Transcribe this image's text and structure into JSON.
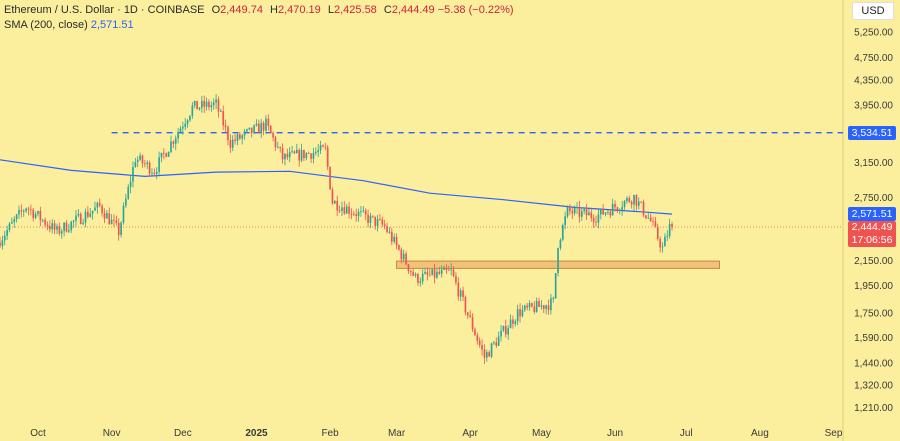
{
  "header": {
    "symbol": "Ethereum / U.S. Dollar · 1D · COINBASE",
    "o_label": "O",
    "o_value": "2,449.74",
    "h_label": "H",
    "h_value": "2,470.19",
    "l_label": "L",
    "l_value": "2,425.58",
    "c_label": "C",
    "c_value": "2,444.49",
    "change": "−5.38 (−0.22%)",
    "sma_label": "SMA (200, close)",
    "sma_value": "2,571.51"
  },
  "currency": "USD",
  "badges": {
    "level": "3,534.51",
    "sma": "2,571.51",
    "price": "2,444.49",
    "countdown": "17:06:56"
  },
  "colors": {
    "background": "#FBEE9C",
    "up": "#26a69a",
    "down": "#ef5350",
    "sma": "#2962ff",
    "level": "#2962ff",
    "zone_fill": "#F2C27A",
    "zone_border": "#C48A3A"
  },
  "chart_data": {
    "type": "candlestick",
    "y_scale": "log",
    "y_range": [
      1150,
      5800
    ],
    "y_ticks": [
      "5,250.00",
      "4,750.00",
      "4,350.00",
      "3,950.00",
      "3,534.51",
      "3,150.00",
      "2,750.00",
      "2,571.51",
      "2,444.49",
      "2,150.00",
      "1,950.00",
      "1,750.00",
      "1,590.00",
      "1,440.00",
      "1,320.00",
      "1,210.00"
    ],
    "x_range": [
      "2024-09-15",
      "2025-09-05"
    ],
    "x_ticks": [
      {
        "label": "Oct",
        "date": "2024-10-01"
      },
      {
        "label": "Nov",
        "date": "2024-11-01"
      },
      {
        "label": "Dec",
        "date": "2024-12-01"
      },
      {
        "label": "2025",
        "date": "2025-01-01"
      },
      {
        "label": "Feb",
        "date": "2025-02-01"
      },
      {
        "label": "Mar",
        "date": "2025-03-01"
      },
      {
        "label": "Apr",
        "date": "2025-04-01"
      },
      {
        "label": "May",
        "date": "2025-05-01"
      },
      {
        "label": "Jun",
        "date": "2025-06-01"
      },
      {
        "label": "Jul",
        "date": "2025-07-01"
      },
      {
        "label": "Aug",
        "date": "2025-08-01"
      },
      {
        "label": "Sep",
        "date": "2025-09-01"
      }
    ],
    "horizontal_line": 3534.51,
    "support_zone": {
      "low": 2080,
      "high": 2140,
      "from": "2025-03-01",
      "to": "2025-07-15"
    },
    "sma_200": [
      {
        "date": "2024-09-15",
        "value": 3180
      },
      {
        "date": "2024-10-15",
        "value": 3050
      },
      {
        "date": "2024-11-15",
        "value": 2980
      },
      {
        "date": "2024-12-15",
        "value": 3030
      },
      {
        "date": "2025-01-15",
        "value": 3040
      },
      {
        "date": "2025-02-15",
        "value": 2930
      },
      {
        "date": "2025-03-15",
        "value": 2790
      },
      {
        "date": "2025-04-15",
        "value": 2720
      },
      {
        "date": "2025-05-15",
        "value": 2640
      },
      {
        "date": "2025-06-15",
        "value": 2590
      },
      {
        "date": "2025-06-25",
        "value": 2571.51
      }
    ],
    "price_path": [
      {
        "date": "2024-09-15",
        "value": 2300
      },
      {
        "date": "2024-09-27",
        "value": 2650
      },
      {
        "date": "2024-10-10",
        "value": 2400
      },
      {
        "date": "2024-10-28",
        "value": 2650
      },
      {
        "date": "2024-11-05",
        "value": 2400
      },
      {
        "date": "2024-11-12",
        "value": 3200
      },
      {
        "date": "2024-11-20",
        "value": 3050
      },
      {
        "date": "2024-12-06",
        "value": 3900
      },
      {
        "date": "2024-12-16",
        "value": 3950
      },
      {
        "date": "2024-12-22",
        "value": 3400
      },
      {
        "date": "2025-01-06",
        "value": 3650
      },
      {
        "date": "2025-01-13",
        "value": 3200
      },
      {
        "date": "2025-01-31",
        "value": 3300
      },
      {
        "date": "2025-02-03",
        "value": 2700
      },
      {
        "date": "2025-02-25",
        "value": 2450
      },
      {
        "date": "2025-03-10",
        "value": 2000
      },
      {
        "date": "2025-03-25",
        "value": 2050
      },
      {
        "date": "2025-04-08",
        "value": 1470
      },
      {
        "date": "2025-04-22",
        "value": 1750
      },
      {
        "date": "2025-05-07",
        "value": 1820
      },
      {
        "date": "2025-05-09",
        "value": 2300
      },
      {
        "date": "2025-05-13",
        "value": 2600
      },
      {
        "date": "2025-05-25",
        "value": 2550
      },
      {
        "date": "2025-06-10",
        "value": 2750
      },
      {
        "date": "2025-06-17",
        "value": 2500
      },
      {
        "date": "2025-06-22",
        "value": 2250
      },
      {
        "date": "2025-06-25",
        "value": 2444.49
      }
    ]
  }
}
